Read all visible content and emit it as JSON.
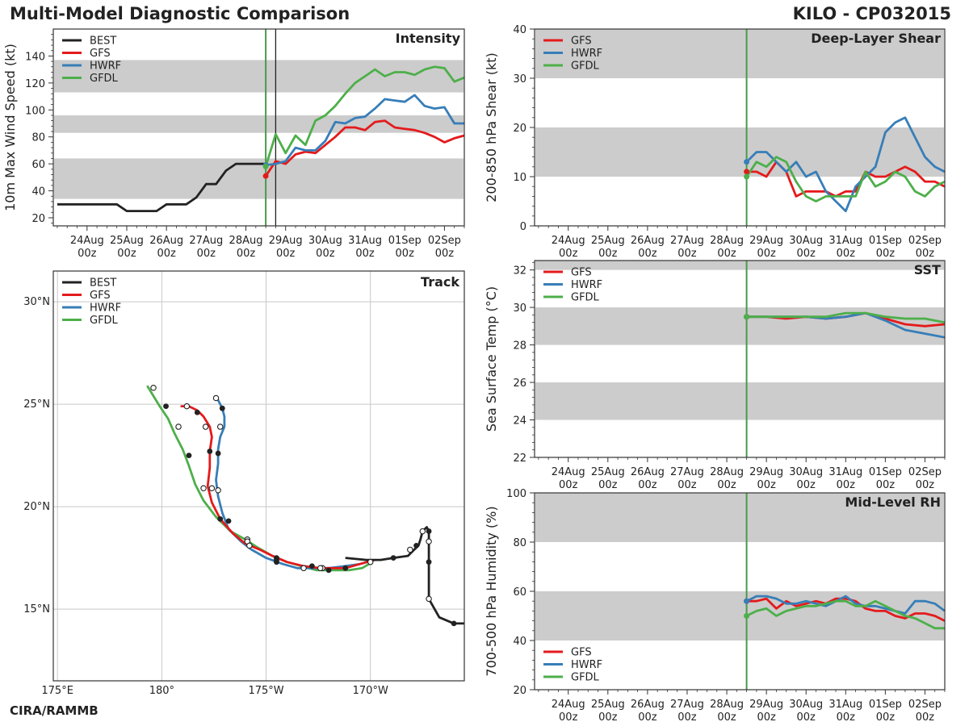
{
  "header": {
    "title": "Multi-Model Diagnostic Comparison",
    "storm": "KILO - CP032015",
    "credit": "CIRA/RAMMB"
  },
  "colors": {
    "BEST": "#222222",
    "GFS": "#e41a1c",
    "HWRF": "#377eb8",
    "GFDL": "#4daf4a",
    "band": "#cccccc",
    "init_line": "#4a9a4a"
  },
  "time_axis": {
    "ticks": [
      {
        "date": "24Aug",
        "hour": "00z",
        "day": 0
      },
      {
        "date": "25Aug",
        "hour": "00z",
        "day": 1
      },
      {
        "date": "26Aug",
        "hour": "00z",
        "day": 2
      },
      {
        "date": "27Aug",
        "hour": "00z",
        "day": 3
      },
      {
        "date": "28Aug",
        "hour": "00z",
        "day": 4
      },
      {
        "date": "29Aug",
        "hour": "00z",
        "day": 5
      },
      {
        "date": "30Aug",
        "hour": "00z",
        "day": 6
      },
      {
        "date": "31Aug",
        "hour": "00z",
        "day": 7
      },
      {
        "date": "01Sep",
        "hour": "00z",
        "day": 8
      },
      {
        "date": "02Sep",
        "hour": "00z",
        "day": 9
      }
    ],
    "range_days": [
      -0.85,
      9.5
    ],
    "init_day": 4.5
  },
  "chart_data": [
    {
      "id": "intensity",
      "type": "line",
      "title": "Intensity",
      "ylabel": "10m Max Wind Speed (kt)",
      "ylim": [
        14,
        160
      ],
      "yticks": [
        20,
        40,
        60,
        80,
        100,
        120,
        140
      ],
      "bands": [
        [
          34,
          64
        ],
        [
          83,
          96
        ],
        [
          113,
          137
        ]
      ],
      "current_day": 4.75,
      "legend": [
        "BEST",
        "GFS",
        "HWRF",
        "GFDL"
      ],
      "series": [
        {
          "name": "BEST",
          "x": [
            -0.75,
            -0.5,
            -0.25,
            0,
            0.25,
            0.5,
            0.75,
            1,
            1.25,
            1.5,
            1.75,
            2,
            2.25,
            2.5,
            2.75,
            3,
            3.25,
            3.5,
            3.75,
            4,
            4.25,
            4.5
          ],
          "y": [
            30,
            30,
            30,
            30,
            30,
            30,
            30,
            25,
            25,
            25,
            25,
            30,
            30,
            30,
            35,
            45,
            45,
            55,
            60,
            60,
            60,
            60
          ]
        },
        {
          "name": "GFS",
          "x": [
            4.5,
            4.75,
            5,
            5.25,
            5.5,
            5.75,
            6,
            6.25,
            6.5,
            6.75,
            7,
            7.25,
            7.5,
            7.75,
            8,
            8.25,
            8.5,
            8.75,
            9,
            9.25,
            9.5
          ],
          "y": [
            51,
            62,
            60,
            67,
            69,
            68,
            74,
            80,
            87,
            87,
            85,
            91,
            92,
            87,
            86,
            85,
            83,
            80,
            76,
            79,
            81
          ]
        },
        {
          "name": "HWRF",
          "x": [
            4.5,
            4.75,
            5,
            5.25,
            5.5,
            5.75,
            6,
            6.25,
            6.5,
            6.75,
            7,
            7.25,
            7.5,
            7.75,
            8,
            8.25,
            8.5,
            8.75,
            9,
            9.25,
            9.5
          ],
          "y": [
            59,
            60,
            62,
            72,
            70,
            70,
            77,
            91,
            90,
            94,
            95,
            101,
            108,
            107,
            106,
            111,
            103,
            101,
            102,
            90,
            90
          ]
        },
        {
          "name": "GFDL",
          "x": [
            4.5,
            4.75,
            5,
            5.25,
            5.5,
            5.75,
            6,
            6.25,
            6.5,
            6.75,
            7,
            7.25,
            7.5,
            7.75,
            8,
            8.25,
            8.5,
            8.75,
            9,
            9.25,
            9.5
          ],
          "y": [
            58,
            82,
            68,
            81,
            74,
            92,
            96,
            103,
            112,
            120,
            125,
            130,
            125,
            128,
            128,
            126,
            130,
            132,
            131,
            121,
            124
          ]
        }
      ]
    },
    {
      "id": "shear",
      "type": "line",
      "title": "Deep-Layer Shear",
      "ylabel": "200-850 hPa Shear (kt)",
      "ylim": [
        0,
        40
      ],
      "yticks": [
        0,
        10,
        20,
        30,
        40
      ],
      "bands": [
        [
          10,
          20
        ],
        [
          30,
          40
        ]
      ],
      "legend": [
        "GFS",
        "HWRF",
        "GFDL"
      ],
      "series": [
        {
          "name": "GFS",
          "x": [
            4.5,
            4.75,
            5,
            5.25,
            5.5,
            5.75,
            6,
            6.25,
            6.5,
            6.75,
            7,
            7.25,
            7.5,
            7.75,
            8,
            8.25,
            8.5,
            8.75,
            9,
            9.25,
            9.5
          ],
          "y": [
            11,
            11,
            10,
            13,
            11,
            6,
            7,
            7,
            7,
            6,
            7,
            7,
            11,
            10,
            10,
            11,
            12,
            11,
            9,
            9,
            8
          ]
        },
        {
          "name": "HWRF",
          "x": [
            4.5,
            4.75,
            5,
            5.25,
            5.5,
            5.75,
            6,
            6.25,
            6.5,
            6.75,
            7,
            7.25,
            7.5,
            7.75,
            8,
            8.25,
            8.5,
            8.75,
            9,
            9.25,
            9.5
          ],
          "y": [
            13,
            15,
            15,
            13,
            11,
            13,
            10,
            11,
            7,
            5,
            3,
            8,
            10,
            12,
            19,
            21,
            22,
            18,
            14,
            12,
            11
          ]
        },
        {
          "name": "GFDL",
          "x": [
            4.5,
            4.75,
            5,
            5.25,
            5.5,
            5.75,
            6,
            6.25,
            6.5,
            6.75,
            7,
            7.25,
            7.5,
            7.75,
            8,
            8.25,
            8.5,
            8.75,
            9,
            9.25,
            9.5
          ],
          "y": [
            10,
            13,
            12,
            14,
            13,
            9,
            6,
            5,
            6,
            6,
            6,
            6,
            11,
            8,
            9,
            11,
            10,
            7,
            6,
            8,
            9
          ]
        }
      ]
    },
    {
      "id": "sst",
      "type": "line",
      "title": "SST",
      "ylabel": "Sea Surface Temp (°C)",
      "ylim": [
        22,
        32.5
      ],
      "yticks": [
        22,
        24,
        26,
        28,
        30,
        32
      ],
      "bands": [
        [
          24,
          26
        ],
        [
          28,
          30
        ],
        [
          32,
          32.5
        ]
      ],
      "legend": [
        "GFS",
        "HWRF",
        "GFDL"
      ],
      "series": [
        {
          "name": "GFS",
          "x": [
            4.5,
            5,
            5.5,
            6,
            6.5,
            7,
            7.5,
            8,
            8.5,
            9,
            9.5
          ],
          "y": [
            29.5,
            29.5,
            29.4,
            29.5,
            29.4,
            29.5,
            29.7,
            29.4,
            29.1,
            29.0,
            29.1
          ]
        },
        {
          "name": "HWRF",
          "x": [
            4.5,
            5,
            5.5,
            6,
            6.5,
            7,
            7.5,
            8,
            8.5,
            9,
            9.5
          ],
          "y": [
            29.5,
            29.5,
            29.5,
            29.5,
            29.4,
            29.5,
            29.7,
            29.3,
            28.8,
            28.6,
            28.4
          ]
        },
        {
          "name": "GFDL",
          "x": [
            4.5,
            5,
            5.5,
            6,
            6.5,
            7,
            7.5,
            8,
            8.5,
            9,
            9.5
          ],
          "y": [
            29.5,
            29.5,
            29.5,
            29.5,
            29.5,
            29.7,
            29.7,
            29.5,
            29.4,
            29.4,
            29.2
          ]
        }
      ]
    },
    {
      "id": "rh",
      "type": "line",
      "title": "Mid-Level RH",
      "ylabel": "700-500 hPa Humidity (%)",
      "ylim": [
        20,
        100
      ],
      "yticks": [
        20,
        40,
        60,
        80,
        100
      ],
      "bands": [
        [
          40,
          60
        ],
        [
          80,
          100
        ]
      ],
      "legend": [
        "GFS",
        "HWRF",
        "GFDL"
      ],
      "series": [
        {
          "name": "GFS",
          "x": [
            4.5,
            4.75,
            5,
            5.25,
            5.5,
            5.75,
            6,
            6.25,
            6.5,
            6.75,
            7,
            7.25,
            7.5,
            7.75,
            8,
            8.25,
            8.5,
            8.75,
            9,
            9.25,
            9.5
          ],
          "y": [
            56,
            56,
            57,
            53,
            56,
            54,
            55,
            56,
            55,
            57,
            57,
            56,
            53,
            52,
            52,
            50,
            49,
            51,
            51,
            50,
            48
          ]
        },
        {
          "name": "HWRF",
          "x": [
            4.5,
            4.75,
            5,
            5.25,
            5.5,
            5.75,
            6,
            6.25,
            6.5,
            6.75,
            7,
            7.25,
            7.5,
            7.75,
            8,
            8.25,
            8.5,
            8.75,
            9,
            9.25,
            9.5
          ],
          "y": [
            56,
            58,
            58,
            57,
            55,
            55,
            56,
            55,
            54,
            56,
            58,
            55,
            54,
            54,
            53,
            52,
            51,
            56,
            56,
            55,
            52
          ]
        },
        {
          "name": "GFDL",
          "x": [
            4.5,
            4.75,
            5,
            5.25,
            5.5,
            5.75,
            6,
            6.25,
            6.5,
            6.75,
            7,
            7.25,
            7.5,
            7.75,
            8,
            8.25,
            8.5,
            8.75,
            9,
            9.25,
            9.5
          ],
          "y": [
            50,
            52,
            53,
            50,
            52,
            53,
            54,
            54,
            55,
            56,
            56,
            54,
            54,
            56,
            54,
            52,
            50,
            49,
            47,
            45,
            45
          ]
        }
      ]
    },
    {
      "id": "track",
      "type": "map-track",
      "title": "Track",
      "lon_range": [
        174.8,
        194.5
      ],
      "lat_range": [
        11.5,
        31.5
      ],
      "lon_ticks": [
        {
          "lon": 175,
          "label": "175°E"
        },
        {
          "lon": 180,
          "label": "180°"
        },
        {
          "lon": 185,
          "label": "175°W"
        },
        {
          "lon": 190,
          "label": "170°W"
        }
      ],
      "lat_ticks": [
        {
          "lat": 15,
          "label": "15°N"
        },
        {
          "lat": 20,
          "label": "20°N"
        },
        {
          "lat": 25,
          "label": "25°N"
        },
        {
          "lat": 30,
          "label": "30°N"
        }
      ],
      "legend": [
        "BEST",
        "GFS",
        "HWRF",
        "GFDL"
      ],
      "tracks": [
        {
          "name": "BEST",
          "lon": [
            194.5,
            194.0,
            193.3,
            192.8,
            192.8,
            192.8,
            192.8,
            192.8,
            192.7,
            192.5,
            192.4,
            192.3,
            192.1,
            191.8,
            191.1,
            190.5,
            189.8,
            188.8
          ],
          "lat": [
            14.3,
            14.3,
            14.6,
            15.5,
            16.5,
            17.3,
            18.3,
            18.8,
            19.0,
            18.8,
            18.4,
            18.1,
            17.9,
            17.6,
            17.5,
            17.4,
            17.4,
            17.5
          ],
          "filled": [
            194.0,
            14.3,
            192.8,
            17.3,
            192.8,
            18.8,
            192.2,
            18.1,
            191.1,
            17.5
          ],
          "hollow": [
            192.8,
            15.5,
            192.8,
            18.3,
            192.5,
            18.8,
            191.9,
            17.9
          ]
        },
        {
          "name": "GFS",
          "lon": [
            190.2,
            189.5,
            188.8,
            188.2,
            187.6,
            186.8,
            186.0,
            185.3,
            184.7,
            184.0,
            183.4,
            182.8,
            182.4,
            182.2,
            182.3,
            182.3,
            182.4,
            182.3,
            182.0,
            181.7,
            181.3,
            180.9
          ],
          "lat": [
            17.4,
            17.2,
            17.0,
            17.0,
            17.0,
            17.1,
            17.3,
            17.6,
            17.9,
            18.2,
            18.7,
            19.4,
            20.2,
            21.0,
            21.9,
            22.7,
            23.4,
            23.9,
            24.4,
            24.7,
            24.9,
            24.9
          ],
          "filled": [
            188.8,
            17.0,
            187.2,
            17.1,
            185.5,
            17.3,
            182.8,
            19.4,
            182.3,
            22.7,
            181.7,
            24.6
          ],
          "hollow": [
            187.6,
            17.0,
            184.2,
            18.1,
            182.4,
            20.9,
            182.1,
            23.9,
            181.2,
            24.9
          ]
        },
        {
          "name": "HWRF",
          "lon": [
            190.2,
            189.5,
            188.8,
            188.0,
            187.3,
            186.5,
            185.8,
            185.0,
            184.3,
            183.8,
            183.2,
            182.9,
            182.7,
            182.6,
            182.7,
            182.7,
            182.8,
            183.0,
            183.0,
            182.9,
            182.7,
            182.5
          ],
          "lat": [
            17.4,
            17.2,
            17.1,
            17.0,
            17.0,
            17.0,
            17.2,
            17.5,
            17.9,
            18.3,
            18.9,
            19.7,
            20.5,
            21.3,
            22.1,
            22.8,
            23.4,
            23.9,
            24.4,
            24.8,
            25.2,
            25.4
          ],
          "filled": [
            187.6,
            17.0,
            185.5,
            17.4,
            183.2,
            19.3,
            182.7,
            22.6,
            182.9,
            24.8
          ],
          "hollow": [
            187.7,
            17.0,
            184.1,
            18.3,
            182.7,
            20.8,
            182.8,
            23.9,
            182.6,
            25.3
          ]
        },
        {
          "name": "GFDL",
          "lon": [
            190.1,
            189.6,
            189.0,
            188.2,
            187.4,
            186.7,
            186.0,
            185.3,
            184.6,
            184.0,
            183.3,
            182.6,
            182.0,
            181.6,
            181.3,
            181.0,
            180.6,
            180.3,
            179.9,
            179.6,
            179.3
          ],
          "lat": [
            17.3,
            17.0,
            16.9,
            16.9,
            16.9,
            17.1,
            17.3,
            17.6,
            18.0,
            18.4,
            18.8,
            19.5,
            20.3,
            21.1,
            22.0,
            22.8,
            23.6,
            24.3,
            24.9,
            25.4,
            25.9
          ],
          "filled": [
            188.0,
            16.9,
            185.5,
            17.5,
            181.3,
            22.5,
            180.2,
            24.9
          ],
          "hollow": [
            190.0,
            17.3,
            186.8,
            17.0,
            184.1,
            18.4,
            182.0,
            20.9,
            180.8,
            23.9,
            179.6,
            25.8
          ]
        }
      ]
    }
  ]
}
